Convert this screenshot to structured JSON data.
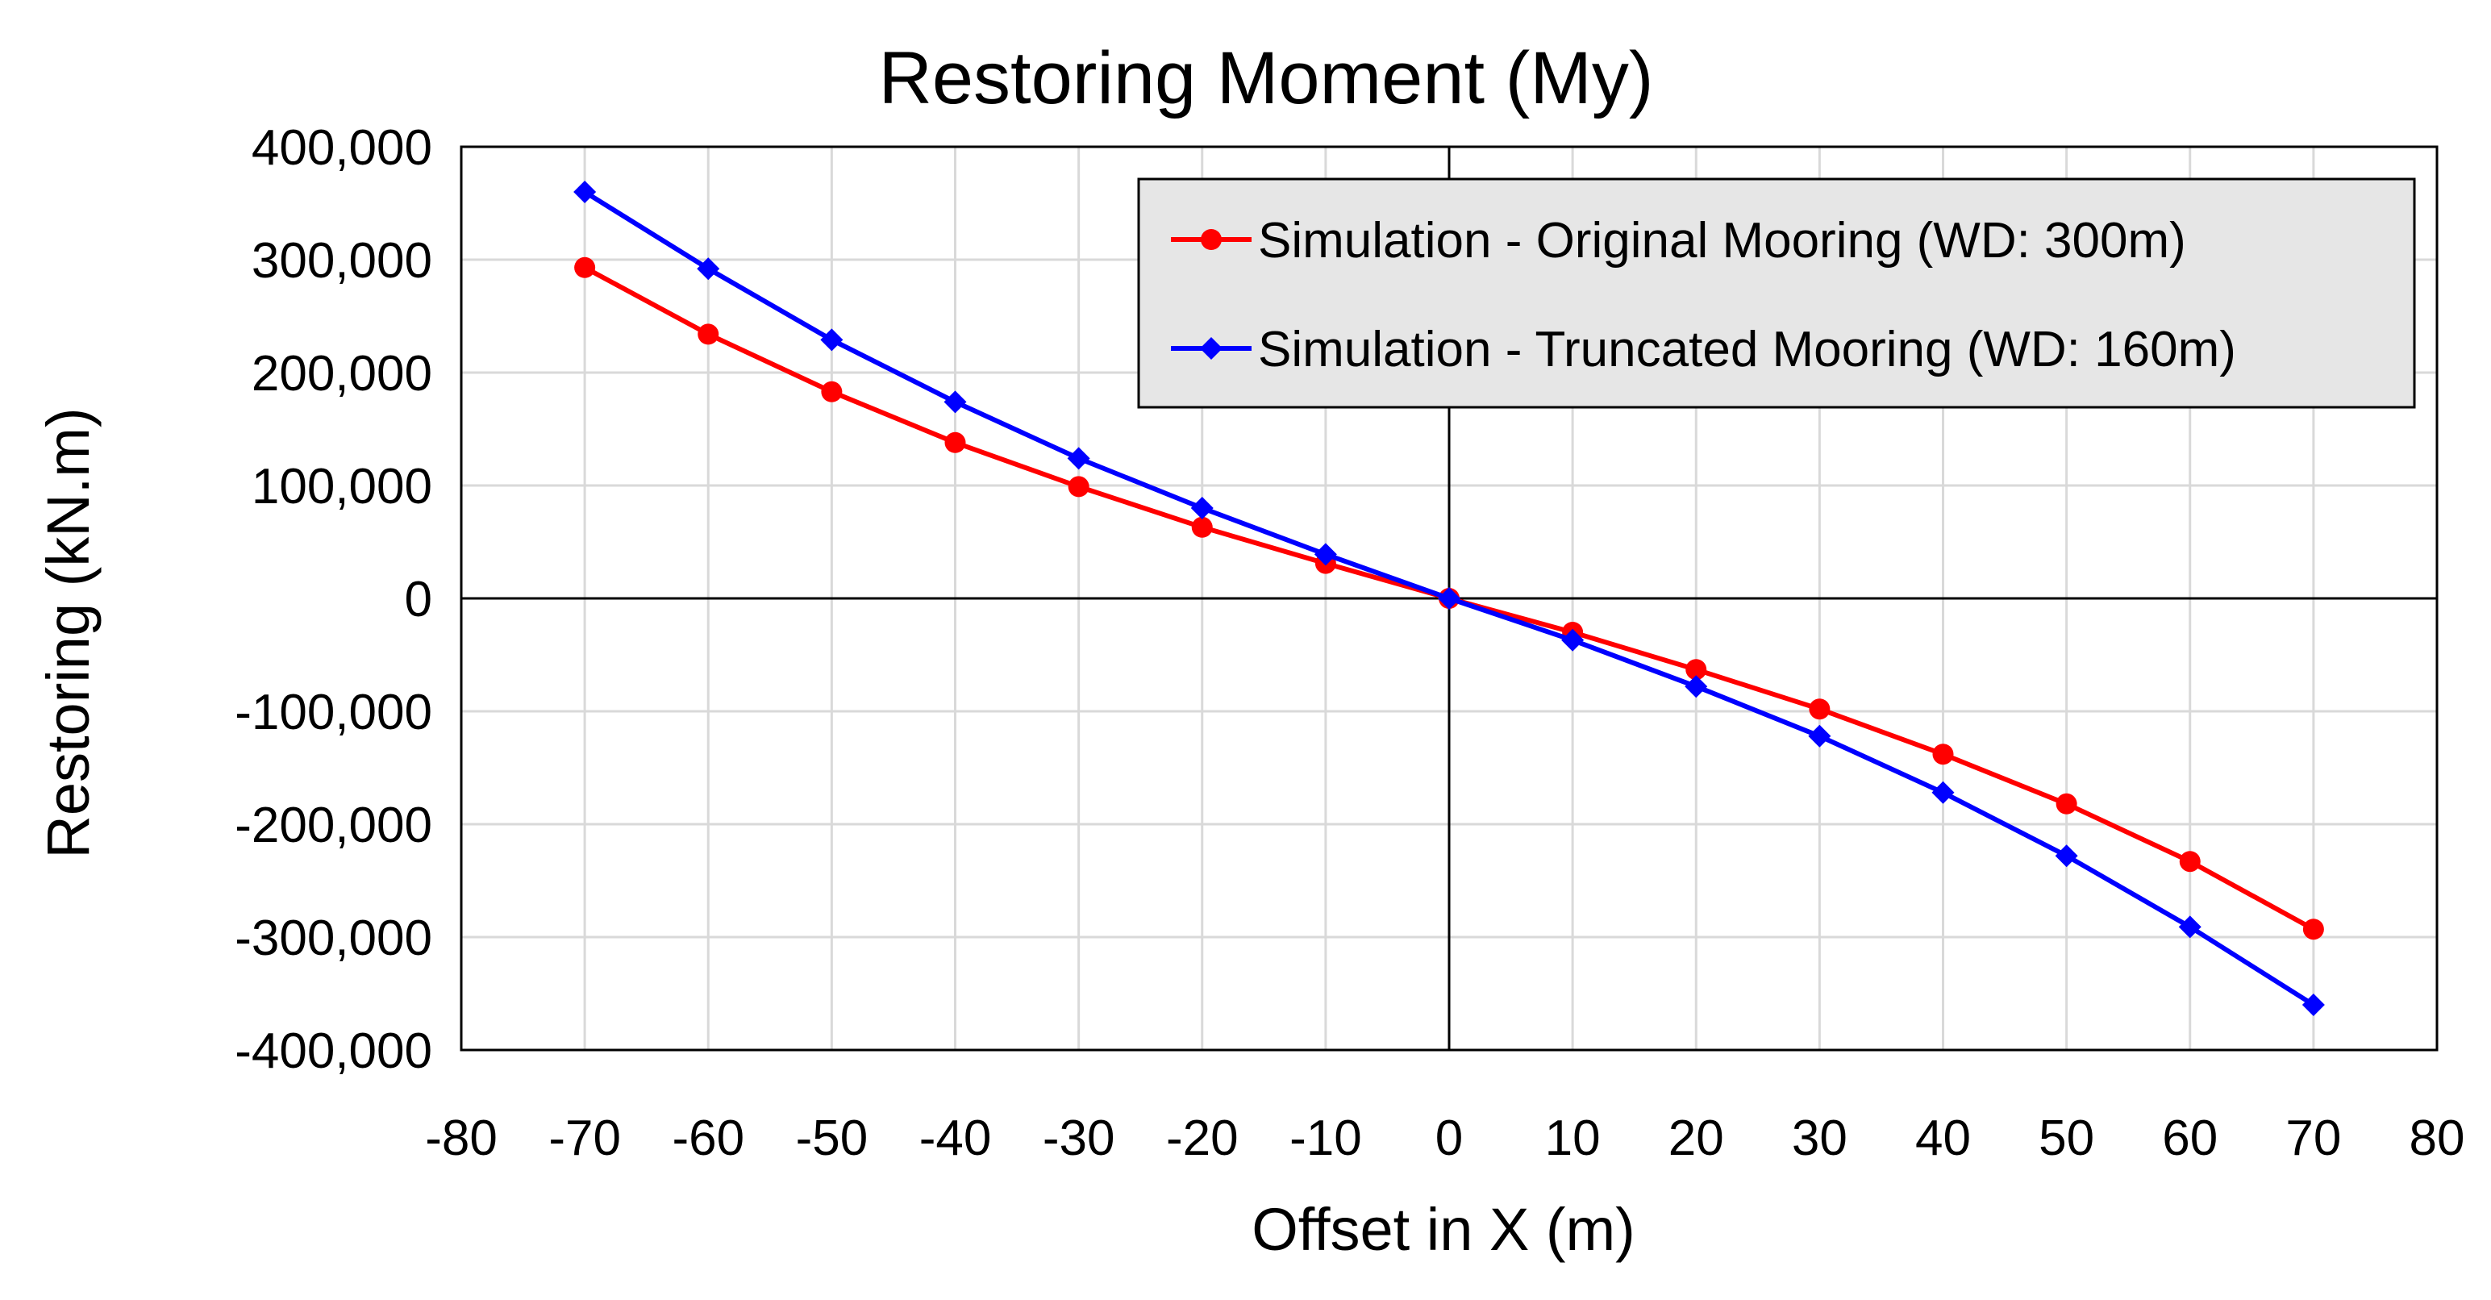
{
  "chart_data": {
    "type": "line",
    "title": "Restoring Moment (My)",
    "xlabel": "Offset in X (m)",
    "ylabel": "Restoring (kN.m)",
    "xlim": [
      -80,
      80
    ],
    "ylim": [
      -400000,
      400000
    ],
    "x_ticks": [
      -80,
      -70,
      -60,
      -50,
      -40,
      -30,
      -20,
      -10,
      0,
      10,
      20,
      30,
      40,
      50,
      60,
      70,
      80
    ],
    "x_tick_labels": [
      "-80",
      "-70",
      "-60",
      "-50",
      "-40",
      "-30",
      "-20",
      "-10",
      "0",
      "10",
      "20",
      "30",
      "40",
      "50",
      "60",
      "70",
      "80"
    ],
    "y_ticks": [
      400000,
      300000,
      200000,
      100000,
      0,
      -100000,
      -200000,
      -300000,
      -400000
    ],
    "y_tick_labels": [
      "400,000",
      "300,000",
      "200,000",
      "100,000",
      "0",
      "-100,000",
      "-200,000",
      "-300,000",
      "-400,000"
    ],
    "grid": true,
    "legend_position": "top-right",
    "x": [
      -70,
      -60,
      -50,
      -40,
      -30,
      -20,
      -10,
      0,
      10,
      20,
      30,
      40,
      50,
      60,
      70
    ],
    "series": [
      {
        "name": "Simulation - Original Mooring (WD: 300m)",
        "color": "#ff0000",
        "marker": "circle",
        "values": [
          293000,
          234000,
          183000,
          138000,
          99000,
          63000,
          31000,
          0,
          -30000,
          -63000,
          -98000,
          -138000,
          -182000,
          -233000,
          -293000
        ]
      },
      {
        "name": "Simulation - Truncated Mooring (WD: 160m)",
        "color": "#0000ff",
        "marker": "diamond",
        "values": [
          360000,
          292000,
          229000,
          174000,
          124000,
          80000,
          39000,
          0,
          -37000,
          -78000,
          -122000,
          -172000,
          -228000,
          -291000,
          -360000
        ]
      }
    ]
  }
}
